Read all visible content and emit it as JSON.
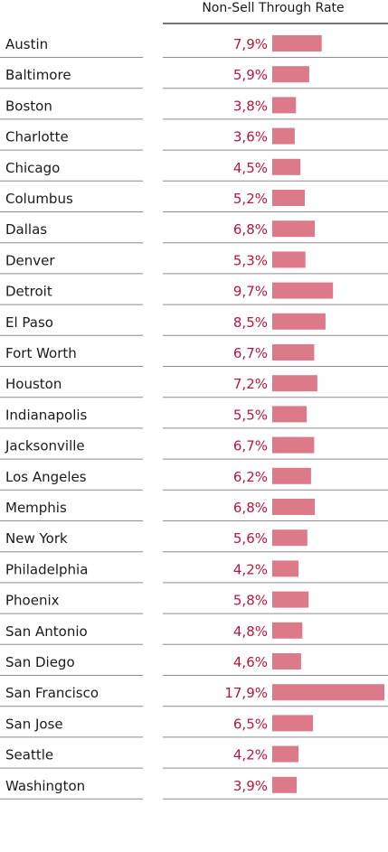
{
  "chart_data": {
    "type": "bar",
    "title": "Non-Sell Through Rate",
    "categories": [
      "Austin",
      "Baltimore",
      "Boston",
      "Charlotte",
      "Chicago",
      "Columbus",
      "Dallas",
      "Denver",
      "Detroit",
      "El Paso",
      "Fort Worth",
      "Houston",
      "Indianapolis",
      "Jacksonville",
      "Los Angeles",
      "Memphis",
      "New York",
      "Philadelphia",
      "Phoenix",
      "San Antonio",
      "San Diego",
      "San Francisco",
      "San Jose",
      "Seattle",
      "Washington"
    ],
    "values": [
      7.9,
      5.9,
      3.8,
      3.6,
      4.5,
      5.2,
      6.8,
      5.3,
      9.7,
      8.5,
      6.7,
      7.2,
      5.5,
      6.7,
      6.2,
      6.8,
      5.6,
      4.2,
      5.8,
      4.8,
      4.6,
      17.9,
      6.5,
      4.2,
      3.9
    ],
    "labels": [
      "7,9%",
      "5,9%",
      "3,8%",
      "3,6%",
      "4,5%",
      "5,2%",
      "6,8%",
      "5,3%",
      "9,7%",
      "8,5%",
      "6,7%",
      "7,2%",
      "5,5%",
      "6,7%",
      "6,2%",
      "6,8%",
      "5,6%",
      "4,2%",
      "5,8%",
      "4,8%",
      "4,6%",
      "17,9%",
      "6,5%",
      "4,2%",
      "3,9%"
    ],
    "unit": "%",
    "xlim": [
      0,
      17.9
    ],
    "colors": {
      "bar": "#dc7a8a",
      "value_text": "#b8163a",
      "category_text": "#1a1a1a",
      "rule": "#8c8c8c"
    }
  }
}
